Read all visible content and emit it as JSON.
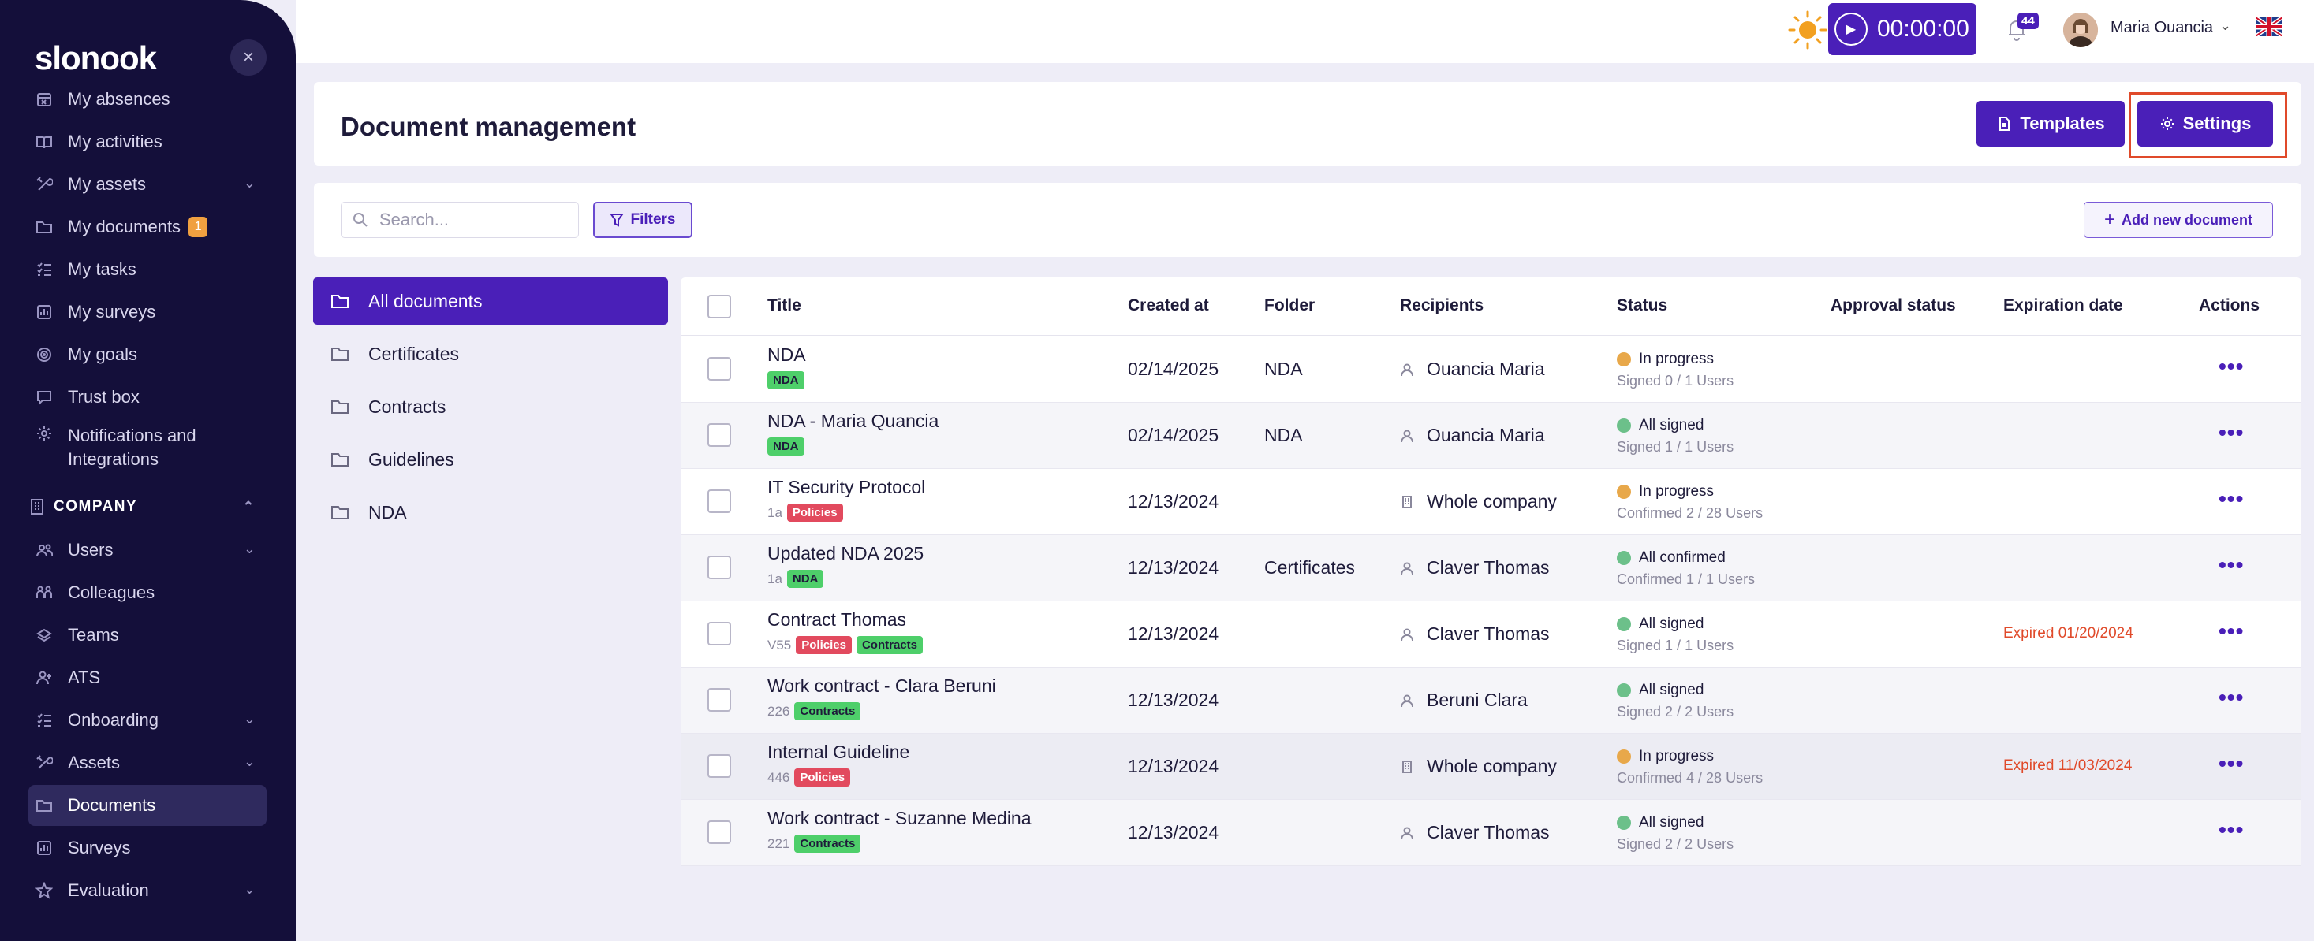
{
  "app": {
    "logo_text": "slonook",
    "colors": {
      "brand": "#4a1fb8",
      "sidebar_bg": "#140f3a",
      "expired": "#e04a2a",
      "tag_green": "#4ecf6a",
      "tag_red": "#e24a5e",
      "status_orange": "#e8a84a",
      "status_green": "#6cc08a"
    }
  },
  "sidebar": {
    "items": [
      {
        "label": "My absences",
        "icon": "calendar-x-icon"
      },
      {
        "label": "My activities",
        "icon": "book-open-icon"
      },
      {
        "label": "My assets",
        "icon": "tools-icon",
        "has_chevron": true
      },
      {
        "label": "My documents",
        "icon": "folder-icon",
        "badge": "1"
      },
      {
        "label": "My tasks",
        "icon": "checklist-icon"
      },
      {
        "label": "My surveys",
        "icon": "chart-icon"
      },
      {
        "label": "My goals",
        "icon": "target-icon"
      },
      {
        "label": "Trust box",
        "icon": "chat-icon"
      },
      {
        "label": "Notifications and\nIntegrations",
        "line1": "Notifications and",
        "line2": "Integrations",
        "icon": "gear-icon"
      }
    ],
    "section_company": "COMPANY",
    "company_items": [
      {
        "label": "Users",
        "icon": "users-icon",
        "has_chevron": true
      },
      {
        "label": "Colleagues",
        "icon": "colleagues-icon"
      },
      {
        "label": "Teams",
        "icon": "teams-icon"
      },
      {
        "label": "ATS",
        "icon": "user-plus-icon"
      },
      {
        "label": "Onboarding",
        "icon": "checklist-icon",
        "has_chevron": true
      },
      {
        "label": "Assets",
        "icon": "tools-icon",
        "has_chevron": true
      },
      {
        "label": "Documents",
        "icon": "folder-icon",
        "active": true
      },
      {
        "label": "Surveys",
        "icon": "chart-icon"
      },
      {
        "label": "Evaluation",
        "icon": "star-icon",
        "has_chevron": true
      }
    ]
  },
  "topbar": {
    "timer": "00:00:00",
    "notification_count": "44",
    "user_name": "Maria Ouancia",
    "language": "en-gb-flag-icon"
  },
  "header": {
    "title": "Document management",
    "templates_label": "Templates",
    "settings_label": "Settings"
  },
  "toolbar": {
    "search_placeholder": "Search...",
    "filters_label": "Filters",
    "add_label": "Add new document"
  },
  "folders": [
    "All documents",
    "Certificates",
    "Contracts",
    "Guidelines",
    "NDA"
  ],
  "table": {
    "columns": {
      "title": "Title",
      "created_at": "Created at",
      "folder": "Folder",
      "recipients": "Recipients",
      "status": "Status",
      "approval": "Approval status",
      "expiration": "Expiration date",
      "actions": "Actions"
    },
    "rows": [
      {
        "title": "NDA",
        "version": "",
        "tags": [
          {
            "label": "NDA",
            "color": "green"
          }
        ],
        "created": "02/14/2025",
        "folder": "NDA",
        "recipient": "Ouancia Maria",
        "recipient_type": "person",
        "status": "In progress",
        "status_color": "orange",
        "status_sub": "Signed 0 / 1 Users",
        "approval": "",
        "expiration": ""
      },
      {
        "title": "NDA - Maria Quancia",
        "version": "",
        "tags": [
          {
            "label": "NDA",
            "color": "green"
          }
        ],
        "created": "02/14/2025",
        "folder": "NDA",
        "recipient": "Ouancia Maria",
        "recipient_type": "person",
        "status": "All signed",
        "status_color": "green",
        "status_sub": "Signed 1 / 1 Users",
        "approval": "",
        "expiration": ""
      },
      {
        "title": "IT Security Protocol",
        "version": "1a",
        "tags": [
          {
            "label": "Policies",
            "color": "red"
          }
        ],
        "created": "12/13/2024",
        "folder": "",
        "recipient": "Whole company",
        "recipient_type": "company",
        "status": "In progress",
        "status_color": "orange",
        "status_sub": "Confirmed 2 / 28 Users",
        "approval": "",
        "expiration": ""
      },
      {
        "title": "Updated NDA 2025",
        "version": "1a",
        "tags": [
          {
            "label": "NDA",
            "color": "green"
          }
        ],
        "created": "12/13/2024",
        "folder": "Certificates",
        "recipient": "Claver Thomas",
        "recipient_type": "person",
        "status": "All confirmed",
        "status_color": "green",
        "status_sub": "Confirmed 1 / 1 Users",
        "approval": "",
        "expiration": ""
      },
      {
        "title": "Contract Thomas",
        "version": "V55",
        "tags": [
          {
            "label": "Policies",
            "color": "red"
          },
          {
            "label": "Contracts",
            "color": "green"
          }
        ],
        "created": "12/13/2024",
        "folder": "",
        "recipient": "Claver Thomas",
        "recipient_type": "person",
        "status": "All signed",
        "status_color": "green",
        "status_sub": "Signed 1 / 1 Users",
        "approval": "",
        "expiration": "Expired 01/20/2024"
      },
      {
        "title": "Work contract - Clara Beruni",
        "version": "226",
        "tags": [
          {
            "label": "Contracts",
            "color": "green"
          }
        ],
        "created": "12/13/2024",
        "folder": "",
        "recipient": "Beruni Clara",
        "recipient_type": "person",
        "status": "All signed",
        "status_color": "green",
        "status_sub": "Signed 2 / 2 Users",
        "approval": "",
        "expiration": ""
      },
      {
        "title": "Internal Guideline",
        "version": "446",
        "tags": [
          {
            "label": "Policies",
            "color": "red"
          }
        ],
        "created": "12/13/2024",
        "folder": "",
        "recipient": "Whole company",
        "recipient_type": "company",
        "status": "In progress",
        "status_color": "orange",
        "status_sub": "Confirmed 4 / 28 Users",
        "approval": "",
        "expiration": "Expired 11/03/2024"
      },
      {
        "title": "Work contract - Suzanne Medina",
        "version": "221",
        "tags": [
          {
            "label": "Contracts",
            "color": "green"
          }
        ],
        "created": "12/13/2024",
        "folder": "",
        "recipient": "Claver Thomas",
        "recipient_type": "person",
        "status": "All signed",
        "status_color": "green",
        "status_sub": "Signed 2 / 2 Users",
        "approval": "",
        "expiration": ""
      }
    ]
  }
}
